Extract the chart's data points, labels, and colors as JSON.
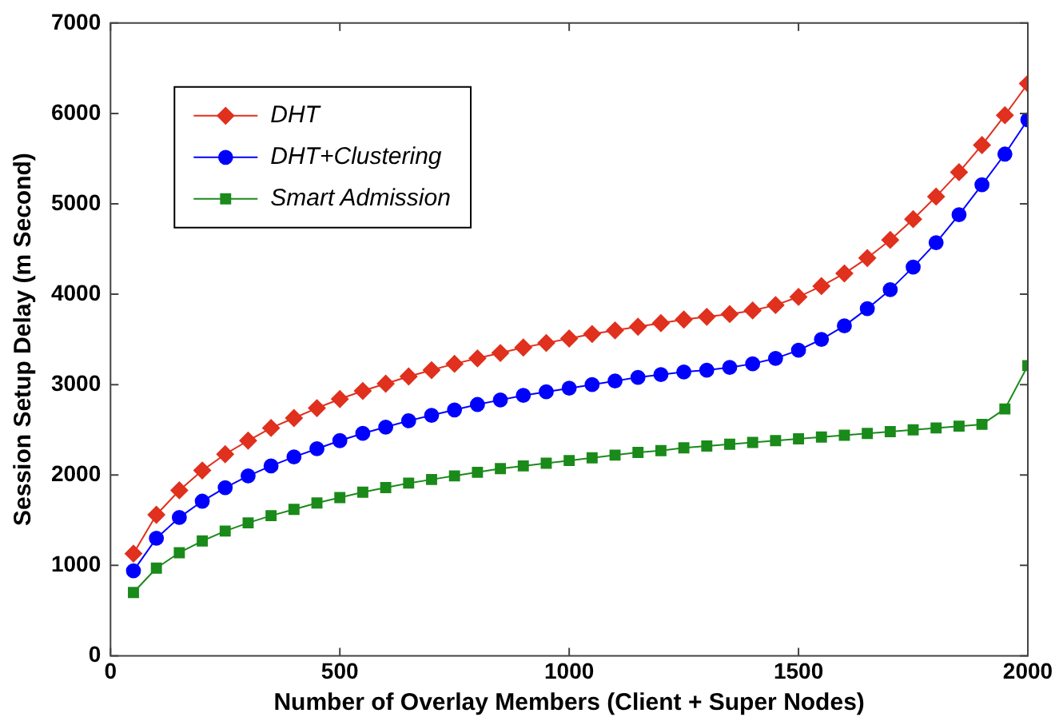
{
  "chart_data": {
    "type": "line",
    "xlabel": "Number of Overlay Members (Client + Super Nodes)",
    "ylabel": "Session Setup Delay (m Second)",
    "x": [
      50,
      100,
      150,
      200,
      250,
      300,
      350,
      400,
      450,
      500,
      550,
      600,
      650,
      700,
      750,
      800,
      850,
      900,
      950,
      1000,
      1050,
      1100,
      1150,
      1200,
      1250,
      1300,
      1350,
      1400,
      1450,
      1500,
      1550,
      1600,
      1650,
      1700,
      1750,
      1800,
      1850,
      1900,
      1950,
      2000
    ],
    "series": [
      {
        "name": "DHT",
        "color": "#e0301e",
        "marker": "diamond",
        "values": [
          1130,
          1560,
          1830,
          2050,
          2230,
          2380,
          2520,
          2630,
          2740,
          2840,
          2930,
          3010,
          3090,
          3160,
          3230,
          3290,
          3350,
          3410,
          3460,
          3510,
          3560,
          3600,
          3640,
          3680,
          3720,
          3750,
          3780,
          3820,
          3880,
          3970,
          4090,
          4230,
          4400,
          4600,
          4830,
          5080,
          5350,
          5650,
          5980,
          6330
        ]
      },
      {
        "name": "DHT+Clustering",
        "color": "#0000ff",
        "marker": "circle",
        "values": [
          940,
          1300,
          1530,
          1710,
          1860,
          1990,
          2100,
          2200,
          2290,
          2380,
          2460,
          2530,
          2600,
          2660,
          2720,
          2780,
          2830,
          2880,
          2920,
          2960,
          3000,
          3040,
          3080,
          3110,
          3140,
          3160,
          3190,
          3230,
          3290,
          3380,
          3500,
          3650,
          3840,
          4050,
          4300,
          4570,
          4880,
          5210,
          5550,
          5930
        ]
      },
      {
        "name": "Smart Admission",
        "color": "#1a8a1a",
        "marker": "square",
        "values": [
          700,
          970,
          1140,
          1270,
          1380,
          1470,
          1550,
          1620,
          1690,
          1750,
          1810,
          1860,
          1910,
          1950,
          1990,
          2030,
          2070,
          2100,
          2130,
          2160,
          2190,
          2220,
          2250,
          2270,
          2300,
          2320,
          2340,
          2360,
          2380,
          2400,
          2420,
          2440,
          2460,
          2480,
          2500,
          2520,
          2540,
          2560,
          2730,
          3210
        ]
      }
    ],
    "xlim": [
      0,
      2000
    ],
    "xticks": [
      0,
      500,
      1000,
      1500,
      2000
    ],
    "ylim": [
      0,
      7000
    ],
    "yticks": [
      0,
      1000,
      2000,
      3000,
      4000,
      5000,
      6000,
      7000
    ],
    "grid": false,
    "legend": "top left",
    "line_style": "solid"
  }
}
